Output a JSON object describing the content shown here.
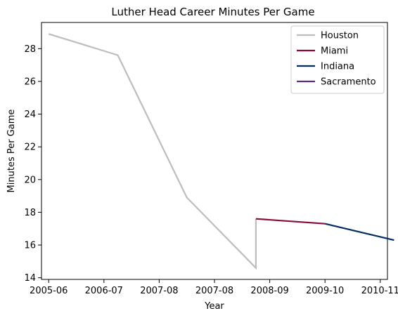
{
  "chart_data": {
    "type": "line",
    "title": "Luther Head Career Minutes Per Game",
    "xlabel": "Year",
    "ylabel": "Minutes Per Game",
    "x_tick_labels": [
      "2005-06",
      "2006-07",
      "2007-08",
      "2007-08",
      "2008-09",
      "2009-10",
      "2010-11"
    ],
    "y_ticks": [
      14,
      16,
      18,
      20,
      22,
      24,
      26,
      28
    ],
    "xlim": [
      -0.13,
      6.13
    ],
    "ylim": [
      13.9,
      29.6
    ],
    "grid": false,
    "legend_position": "top-right",
    "series": [
      {
        "name": "Houston",
        "color": "#bdbdbd",
        "x": [
          0,
          1.25,
          2.5,
          3.75,
          3.75
        ],
        "y": [
          28.9,
          27.6,
          18.9,
          14.6,
          17.6
        ]
      },
      {
        "name": "Miami",
        "color": "#8b0a3b",
        "x": [
          3.75,
          5.0
        ],
        "y": [
          17.6,
          17.3
        ]
      },
      {
        "name": "Indiana",
        "color": "#002d62",
        "x": [
          5.0,
          6.25
        ],
        "y": [
          17.3,
          16.3
        ]
      },
      {
        "name": "Sacramento",
        "color": "#5a2d81",
        "x": [],
        "y": []
      }
    ]
  }
}
